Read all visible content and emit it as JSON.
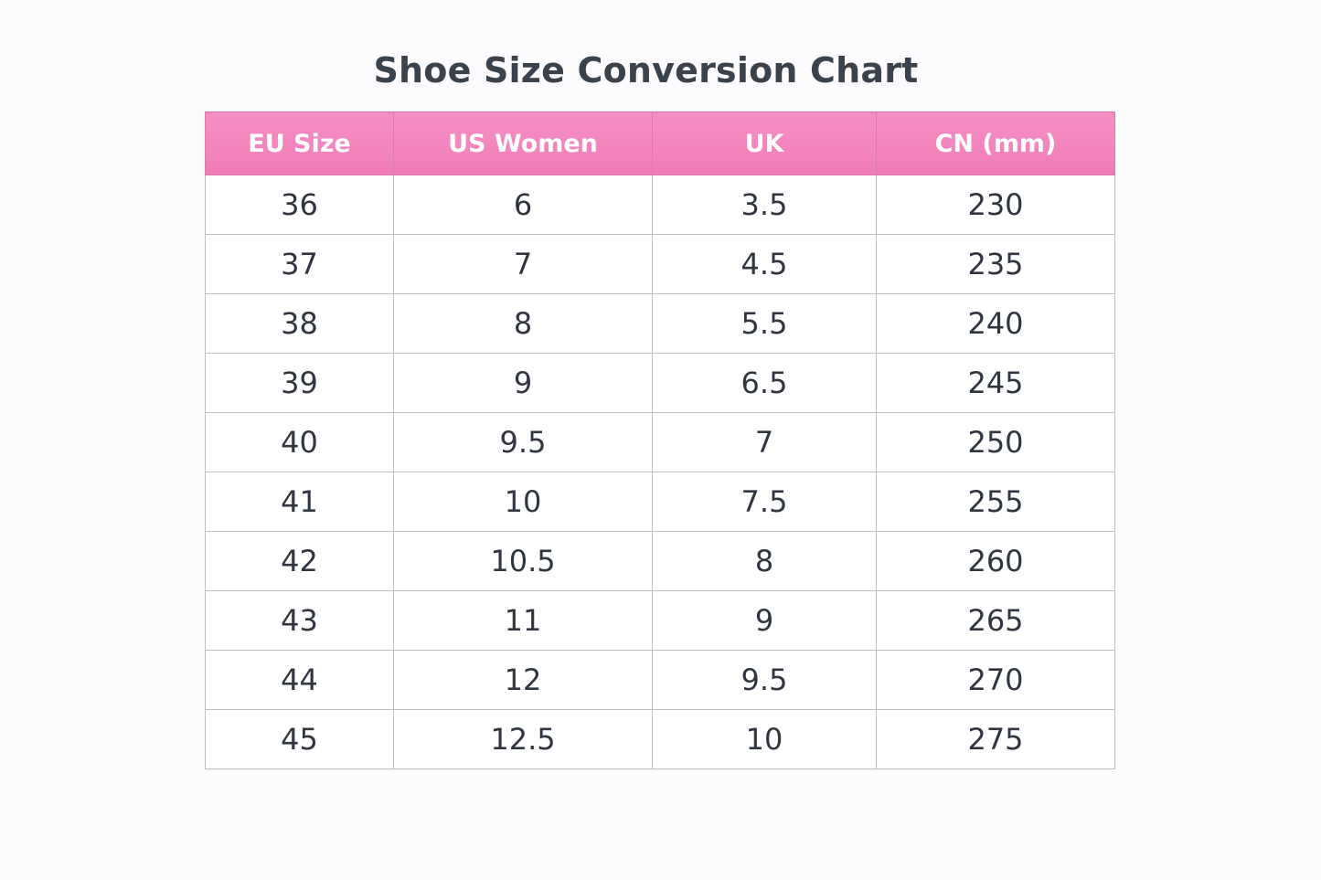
{
  "chart_data": {
    "type": "table",
    "title": "Shoe Size Conversion Chart",
    "columns": [
      "EU Size",
      "US Women",
      "UK",
      "CN (mm)"
    ],
    "rows": [
      [
        "36",
        "6",
        "3.5",
        "230"
      ],
      [
        "37",
        "7",
        "4.5",
        "235"
      ],
      [
        "38",
        "8",
        "5.5",
        "240"
      ],
      [
        "39",
        "9",
        "6.5",
        "245"
      ],
      [
        "40",
        "9.5",
        "7",
        "250"
      ],
      [
        "41",
        "10",
        "7.5",
        "255"
      ],
      [
        "42",
        "10.5",
        "8",
        "260"
      ],
      [
        "43",
        "11",
        "9",
        "265"
      ],
      [
        "44",
        "12",
        "9.5",
        "270"
      ],
      [
        "45",
        "12.5",
        "10",
        "275"
      ]
    ],
    "colors": {
      "header_background": "#f285bd",
      "header_text": "#ffffff",
      "cell_text": "#2f3640",
      "border": "#bdbdc2"
    }
  }
}
